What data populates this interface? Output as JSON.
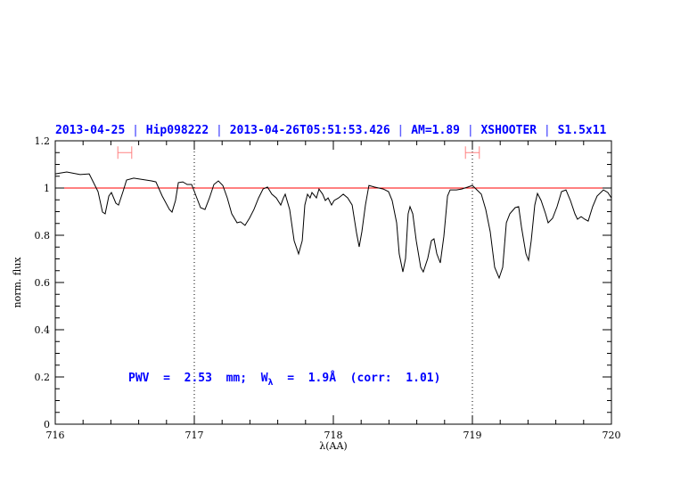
{
  "chart_data": {
    "type": "line",
    "title_parts": [
      "2013-04-25",
      "Hip098222",
      "2013-04-26T05:51:53.426",
      "AM=1.89",
      "XSHOOTER",
      "S1.5x11"
    ],
    "title_separator": "|",
    "xlabel": "λ(AA)",
    "ylabel": "norm. flux",
    "xlim": [
      716,
      720
    ],
    "ylim": [
      0,
      1.2
    ],
    "xticks": [
      "716",
      "717",
      "718",
      "719",
      "720"
    ],
    "yticks": [
      "0",
      "0.2",
      "0.4",
      "0.6",
      "0.8",
      "1",
      "1.2"
    ],
    "reference_line": 1.0,
    "vlines": [
      717,
      719
    ],
    "error_bars": [
      {
        "x": 716.5,
        "xerr": 0.05,
        "y": 1.15
      },
      {
        "x": 719.0,
        "xerr": 0.05,
        "y": 1.15
      }
    ],
    "annotation": {
      "prefix": "PWV  =  2.53  mm;  W",
      "sub": "λ",
      "suffix": "  =  1.9Å  (corr:  1.01)"
    },
    "colors": {
      "line": "#000000",
      "ref": "#ff0000",
      "errbar": "#ff8080",
      "title": "#0000ff",
      "separator": "#6060ff"
    },
    "series": [
      {
        "name": "spectrum",
        "x": [
          716.0,
          716.083,
          716.179,
          716.244,
          716.308,
          716.34,
          716.359,
          716.385,
          716.404,
          716.436,
          716.455,
          716.487,
          716.513,
          716.564,
          716.692,
          716.724,
          716.769,
          716.821,
          716.84,
          716.865,
          716.885,
          716.917,
          716.949,
          716.981,
          717.013,
          717.045,
          717.077,
          717.109,
          717.141,
          717.173,
          717.205,
          717.237,
          717.269,
          717.308,
          717.333,
          717.365,
          717.397,
          717.429,
          717.462,
          717.494,
          717.526,
          717.558,
          717.59,
          717.622,
          717.641,
          717.654,
          717.686,
          717.718,
          717.75,
          717.776,
          717.795,
          717.814,
          717.833,
          717.846,
          717.878,
          717.897,
          717.923,
          717.942,
          717.962,
          717.987,
          718.006,
          718.038,
          718.071,
          718.103,
          718.135,
          718.167,
          718.186,
          718.205,
          718.231,
          718.256,
          718.295,
          718.359,
          718.397,
          718.423,
          718.455,
          718.474,
          718.5,
          718.519,
          718.538,
          718.551,
          718.571,
          718.596,
          718.628,
          718.647,
          718.679,
          718.705,
          718.724,
          718.744,
          718.769,
          718.795,
          718.821,
          718.84,
          718.885,
          718.923,
          718.968,
          719.0,
          719.064,
          719.096,
          719.128,
          719.16,
          719.192,
          719.218,
          719.244,
          719.269,
          719.308,
          719.333,
          719.353,
          719.385,
          719.404,
          719.423,
          719.449,
          719.468,
          719.494,
          719.526,
          719.545,
          719.577,
          719.609,
          719.641,
          719.673,
          719.705,
          719.737,
          719.756,
          719.782,
          719.808,
          719.833,
          719.865,
          719.897,
          719.942,
          719.974,
          720.0
        ],
        "y": [
          1.06,
          1.068,
          1.057,
          1.06,
          0.985,
          0.898,
          0.891,
          0.966,
          0.981,
          0.936,
          0.928,
          0.985,
          1.034,
          1.042,
          1.03,
          1.026,
          0.966,
          0.909,
          0.898,
          0.947,
          1.023,
          1.026,
          1.015,
          1.015,
          0.966,
          0.917,
          0.909,
          0.958,
          1.015,
          1.03,
          1.011,
          0.958,
          0.891,
          0.853,
          0.857,
          0.842,
          0.872,
          0.909,
          0.958,
          0.996,
          1.004,
          0.974,
          0.958,
          0.928,
          0.958,
          0.974,
          0.909,
          0.777,
          0.721,
          0.777,
          0.928,
          0.974,
          0.958,
          0.981,
          0.958,
          0.996,
          0.974,
          0.947,
          0.958,
          0.928,
          0.947,
          0.958,
          0.974,
          0.958,
          0.928,
          0.808,
          0.751,
          0.815,
          0.928,
          1.011,
          1.004,
          0.996,
          0.985,
          0.947,
          0.853,
          0.721,
          0.645,
          0.702,
          0.891,
          0.921,
          0.891,
          0.777,
          0.664,
          0.645,
          0.702,
          0.777,
          0.785,
          0.721,
          0.683,
          0.796,
          0.966,
          0.992,
          0.992,
          0.996,
          1.004,
          1.011,
          0.974,
          0.909,
          0.815,
          0.664,
          0.619,
          0.664,
          0.853,
          0.891,
          0.917,
          0.921,
          0.834,
          0.721,
          0.694,
          0.777,
          0.928,
          0.977,
          0.947,
          0.891,
          0.853,
          0.872,
          0.921,
          0.985,
          0.992,
          0.947,
          0.891,
          0.868,
          0.879,
          0.868,
          0.86,
          0.921,
          0.966,
          0.992,
          0.981,
          0.958
        ]
      }
    ]
  }
}
